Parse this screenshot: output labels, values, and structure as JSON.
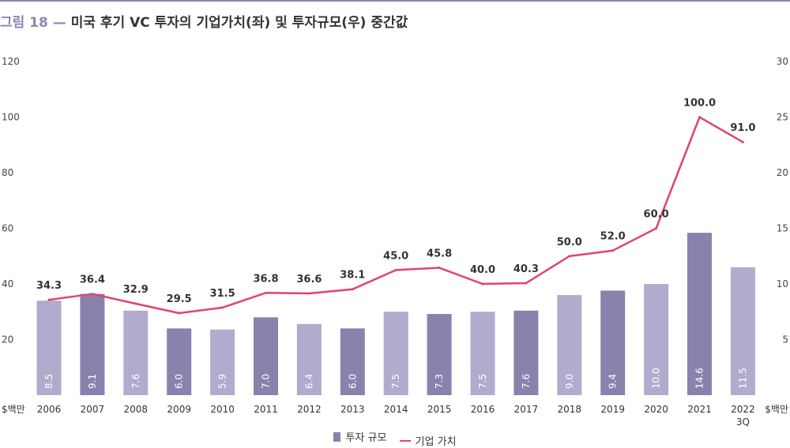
{
  "title": {
    "fig": "그림 18",
    "dash": "—",
    "text": "미국 후기 VC 투자의 기업가치(좌) 및 투자규모(우) 중간값"
  },
  "colors": {
    "bar_dark": "#8982ad",
    "bar_light": "#b1abcd",
    "line": "#e0446f",
    "accent": "#8e85b3"
  },
  "chart_data": {
    "type": "bar",
    "categories": [
      "2006",
      "2007",
      "2008",
      "2009",
      "2010",
      "2011",
      "2012",
      "2013",
      "2014",
      "2015",
      "2016",
      "2017",
      "2018",
      "2019",
      "2020",
      "2021",
      "2022 3Q"
    ],
    "series": [
      {
        "name": "투자 규모",
        "type": "bar",
        "axis": "right",
        "values": [
          8.5,
          9.1,
          7.6,
          6.0,
          5.9,
          7.0,
          6.4,
          6.0,
          7.5,
          7.3,
          7.5,
          7.6,
          9.0,
          9.4,
          10.0,
          14.6,
          11.5
        ],
        "value_labels": [
          "8.5",
          "9.1",
          "7.6",
          "6.0",
          "5.9",
          "7.0",
          "6.4",
          "6.0",
          "7.5",
          "7.3",
          "7.5",
          "7.6",
          "9.0",
          "9.4",
          "10.0",
          "14.6",
          "11.5"
        ],
        "shade": [
          "light",
          "dark",
          "light",
          "dark",
          "light",
          "dark",
          "light",
          "dark",
          "light",
          "dark",
          "light",
          "dark",
          "light",
          "dark",
          "light",
          "dark",
          "light"
        ]
      },
      {
        "name": "기업 가치",
        "type": "line",
        "axis": "left",
        "values": [
          34.3,
          36.4,
          32.9,
          29.5,
          31.5,
          36.8,
          36.6,
          38.1,
          45.0,
          45.8,
          40.0,
          40.3,
          50.0,
          52.0,
          60.0,
          100.0,
          91.0
        ],
        "value_labels": [
          "34.3",
          "36.4",
          "32.9",
          "29.5",
          "31.5",
          "36.8",
          "36.6",
          "38.1",
          "45.0",
          "45.8",
          "40.0",
          "40.3",
          "50.0",
          "52.0",
          "60.0",
          "100.0",
          "91.0"
        ]
      }
    ],
    "left_axis": {
      "ylim": [
        0,
        120
      ],
      "ticks": [
        "20",
        "40",
        "60",
        "80",
        "100",
        "120"
      ],
      "unit": "$백만"
    },
    "right_axis": {
      "ylim": [
        0,
        30
      ],
      "ticks": [
        "5",
        "10",
        "15",
        "20",
        "25",
        "30"
      ],
      "unit": "$백만"
    },
    "grid": false,
    "legend_position": "bottom-center"
  },
  "legend": {
    "bar_label": "투자 규모",
    "line_label": "기업 가치"
  }
}
